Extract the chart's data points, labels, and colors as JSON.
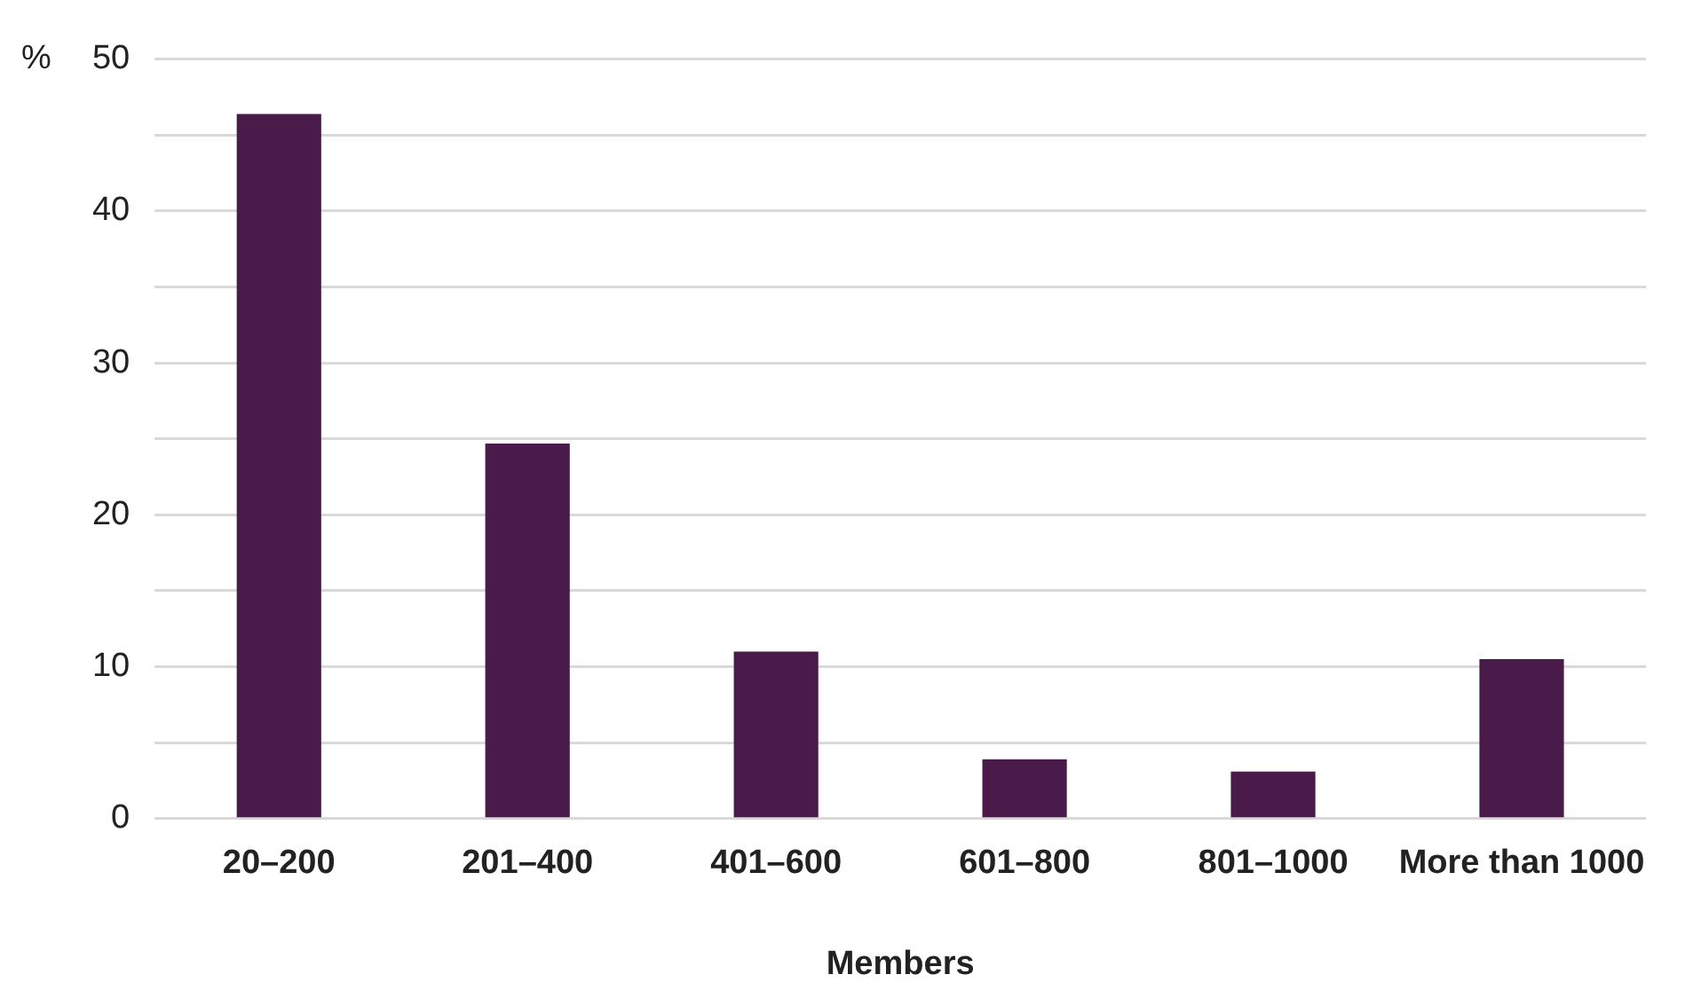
{
  "chart_data": {
    "type": "bar",
    "xlabel": "Members",
    "ylabel": "%",
    "categories": [
      "20–200",
      "201–400",
      "401–600",
      "601–800",
      "801–1000",
      "More than 1000"
    ],
    "values": [
      46.4,
      24.7,
      11.0,
      3.9,
      3.1,
      10.5
    ],
    "color": "#4a1a4a",
    "ylim": [
      0,
      50
    ],
    "yticks": [
      0,
      {
        "value": 5,
        "label": null
      },
      10,
      {
        "value": 15,
        "label": null
      },
      20,
      {
        "value": 25,
        "label": null
      },
      30,
      {
        "value": 35,
        "label": null
      },
      40,
      {
        "value": 45,
        "label": null
      },
      50
    ],
    "grid": "y",
    "legend": false
  }
}
